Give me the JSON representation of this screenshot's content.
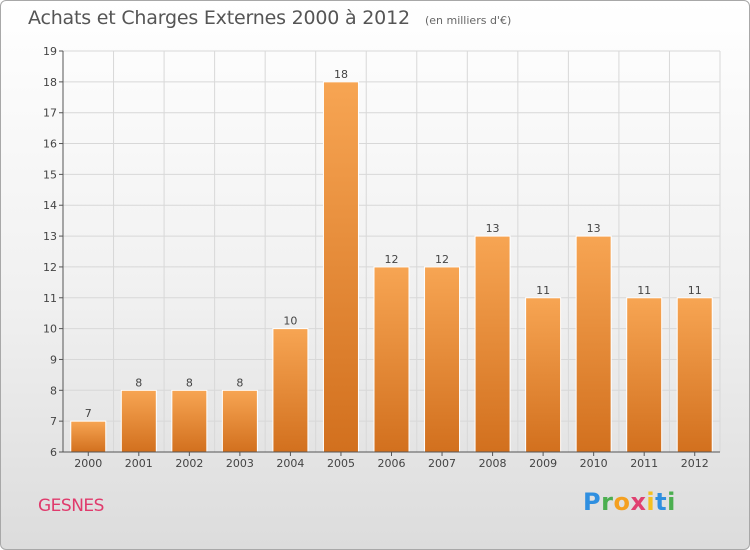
{
  "header": {
    "title": "Achats et Charges Externes 2000 à 2012",
    "subtitle": "(en milliers d'€)"
  },
  "footer": {
    "commune": "GESNES",
    "brand": "Proxiti"
  },
  "colors": {
    "bar_light": "#f7a24f",
    "bar_dark": "#d2701e",
    "grid": "#d8d8d8",
    "axis": "#555555",
    "commune": "#e03a6c"
  },
  "chart_data": {
    "type": "bar",
    "title": "Achats et Charges Externes 2000 à 2012",
    "subtitle": "(en milliers d'€)",
    "categories": [
      "2000",
      "2001",
      "2002",
      "2003",
      "2004",
      "2005",
      "2006",
      "2007",
      "2008",
      "2009",
      "2010",
      "2011",
      "2012"
    ],
    "values": [
      7,
      8,
      8,
      8,
      10,
      18,
      12,
      12,
      13,
      11,
      13,
      11,
      11
    ],
    "ylim": [
      6,
      19
    ],
    "yticks": [
      6,
      7,
      8,
      9,
      10,
      11,
      12,
      13,
      14,
      15,
      16,
      17,
      18,
      19
    ],
    "grid": true,
    "data_labels": true,
    "xlabel": "",
    "ylabel": ""
  }
}
